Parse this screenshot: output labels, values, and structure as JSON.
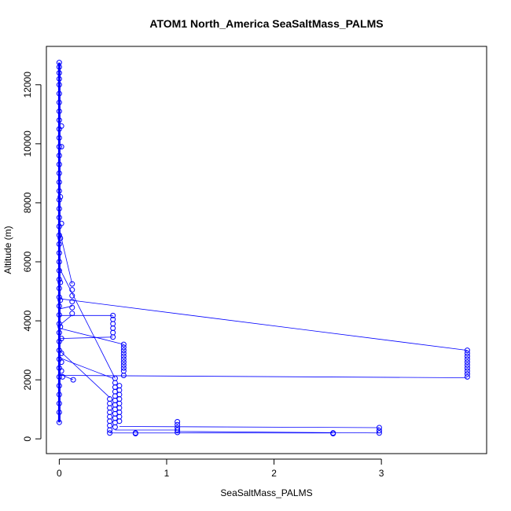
{
  "chart_data": {
    "type": "scatter",
    "title": "ATOM1 North_America SeaSaltMass_PALMS",
    "xlabel": "SeaSaltMass_PALMS",
    "ylabel": "Altitude (m)",
    "xlim": [
      -0.12,
      3.98
    ],
    "ylim": [
      -500,
      13300
    ],
    "xticks": [
      0,
      1,
      2,
      3
    ],
    "yticks": [
      0,
      2000,
      4000,
      6000,
      8000,
      10000,
      12000
    ],
    "grid": false,
    "legend": "none",
    "series": [
      {
        "color": "#0000ff",
        "marker": "open-circle",
        "connect": "line",
        "points": [
          [
            0.0,
            12750
          ],
          [
            0.0,
            12600
          ],
          [
            0.0,
            12400
          ],
          [
            0.0,
            12200
          ],
          [
            0.0,
            12000
          ],
          [
            0.0,
            11700
          ],
          [
            0.0,
            11400
          ],
          [
            0.0,
            11100
          ],
          [
            0.0,
            10800
          ],
          [
            0.0,
            10500
          ],
          [
            0.0,
            10200
          ],
          [
            0.0,
            9900
          ],
          [
            0.0,
            9600
          ],
          [
            0.0,
            9300
          ],
          [
            0.0,
            9000
          ],
          [
            0.0,
            8700
          ],
          [
            0.0,
            8400
          ],
          [
            0.0,
            8100
          ],
          [
            0.0,
            7800
          ],
          [
            0.0,
            7500
          ],
          [
            0.0,
            7200
          ],
          [
            0.0,
            6900
          ],
          [
            0.0,
            6600
          ],
          [
            0.0,
            6300
          ],
          [
            0.0,
            6000
          ],
          [
            0.0,
            5700
          ],
          [
            0.0,
            5400
          ],
          [
            0.0,
            5100
          ],
          [
            0.0,
            4800
          ],
          [
            0.0,
            4500
          ],
          [
            0.0,
            4200
          ],
          [
            0.0,
            3900
          ],
          [
            0.0,
            3600
          ],
          [
            0.0,
            3300
          ],
          [
            0.0,
            3000
          ],
          [
            0.0,
            2700
          ],
          [
            0.0,
            2400
          ],
          [
            0.0,
            2100
          ],
          [
            0.0,
            1800
          ],
          [
            0.0,
            1500
          ],
          [
            0.0,
            1200
          ],
          [
            0.0,
            900
          ],
          [
            0.0,
            560
          ],
          [
            0.02,
            3400
          ],
          [
            0.02,
            2900
          ],
          [
            0.02,
            2600
          ],
          [
            0.02,
            2300
          ],
          [
            0.03,
            2100
          ],
          [
            0.01,
            8200
          ],
          [
            0.01,
            6800
          ],
          [
            0.01,
            5300
          ],
          [
            0.01,
            4700
          ],
          [
            0.01,
            3800
          ],
          [
            0.02,
            9900
          ],
          [
            0.02,
            10600
          ],
          [
            0.02,
            7300
          ],
          [
            0.12,
            5250
          ],
          [
            0.12,
            5050
          ],
          [
            0.12,
            4850
          ],
          [
            0.12,
            4650
          ],
          [
            0.12,
            4450
          ],
          [
            0.12,
            4250
          ],
          [
            0.13,
            2000
          ],
          [
            0.5,
            4180
          ],
          [
            0.5,
            4050
          ],
          [
            0.5,
            3900
          ],
          [
            0.5,
            3750
          ],
          [
            0.5,
            3600
          ],
          [
            0.5,
            3450
          ],
          [
            0.6,
            3200
          ],
          [
            0.6,
            3100
          ],
          [
            0.6,
            3000
          ],
          [
            0.6,
            2900
          ],
          [
            0.6,
            2800
          ],
          [
            0.6,
            2700
          ],
          [
            0.6,
            2600
          ],
          [
            0.6,
            2500
          ],
          [
            0.6,
            2400
          ],
          [
            0.6,
            2300
          ],
          [
            0.6,
            2150
          ],
          [
            0.47,
            1350
          ],
          [
            0.47,
            1200
          ],
          [
            0.47,
            1050
          ],
          [
            0.47,
            900
          ],
          [
            0.47,
            750
          ],
          [
            0.47,
            600
          ],
          [
            0.47,
            450
          ],
          [
            0.47,
            300
          ],
          [
            0.47,
            200
          ],
          [
            0.52,
            2050
          ],
          [
            0.52,
            1900
          ],
          [
            0.52,
            1750
          ],
          [
            0.52,
            1600
          ],
          [
            0.52,
            1450
          ],
          [
            0.52,
            1300
          ],
          [
            0.52,
            1150
          ],
          [
            0.52,
            1000
          ],
          [
            0.52,
            850
          ],
          [
            0.52,
            700
          ],
          [
            0.52,
            550
          ],
          [
            0.52,
            400
          ],
          [
            0.56,
            1800
          ],
          [
            0.56,
            1650
          ],
          [
            0.56,
            1500
          ],
          [
            0.56,
            1350
          ],
          [
            0.56,
            1200
          ],
          [
            0.56,
            1050
          ],
          [
            0.56,
            900
          ],
          [
            0.56,
            750
          ],
          [
            0.56,
            600
          ],
          [
            0.71,
            200
          ],
          [
            0.71,
            180
          ],
          [
            1.1,
            580
          ],
          [
            1.1,
            480
          ],
          [
            1.1,
            380
          ],
          [
            1.1,
            300
          ],
          [
            1.1,
            220
          ],
          [
            2.55,
            200
          ],
          [
            2.55,
            180
          ],
          [
            2.98,
            380
          ],
          [
            2.98,
            280
          ],
          [
            2.98,
            200
          ],
          [
            3.8,
            3000
          ],
          [
            3.8,
            2900
          ],
          [
            3.8,
            2800
          ],
          [
            3.8,
            2700
          ],
          [
            3.8,
            2600
          ],
          [
            3.8,
            2500
          ],
          [
            3.8,
            2400
          ],
          [
            3.8,
            2300
          ],
          [
            3.8,
            2200
          ],
          [
            3.8,
            2100
          ]
        ],
        "lines": [
          [
            [
              0.0,
              4750
            ],
            [
              3.8,
              3000
            ]
          ],
          [
            [
              0.0,
              2150
            ],
            [
              3.8,
              2070
            ]
          ],
          [
            [
              0.0,
              4180
            ],
            [
              0.5,
              4180
            ]
          ],
          [
            [
              0.0,
              3400
            ],
            [
              0.5,
              3450
            ]
          ],
          [
            [
              0.0,
              3750
            ],
            [
              0.6,
              3200
            ]
          ],
          [
            [
              0.0,
              5800
            ],
            [
              0.52,
              2050
            ]
          ],
          [
            [
              0.0,
              7100
            ],
            [
              0.12,
              5250
            ]
          ],
          [
            [
              0.0,
              3000
            ],
            [
              0.47,
              1400
            ]
          ],
          [
            [
              0.0,
              2750
            ],
            [
              0.5,
              2050
            ]
          ],
          [
            [
              0.0,
              2200
            ],
            [
              0.13,
              2000
            ]
          ],
          [
            [
              0.56,
              420
            ],
            [
              2.98,
              380
            ]
          ],
          [
            [
              0.52,
              300
            ],
            [
              1.1,
              300
            ]
          ],
          [
            [
              0.47,
              200
            ],
            [
              2.55,
              200
            ]
          ],
          [
            [
              1.1,
              250
            ],
            [
              2.98,
              200
            ]
          ],
          [
            [
              0.12,
              4500
            ],
            [
              0.0,
              4400
            ]
          ],
          [
            [
              0.12,
              4200
            ],
            [
              0.02,
              3900
            ]
          ]
        ]
      }
    ]
  }
}
